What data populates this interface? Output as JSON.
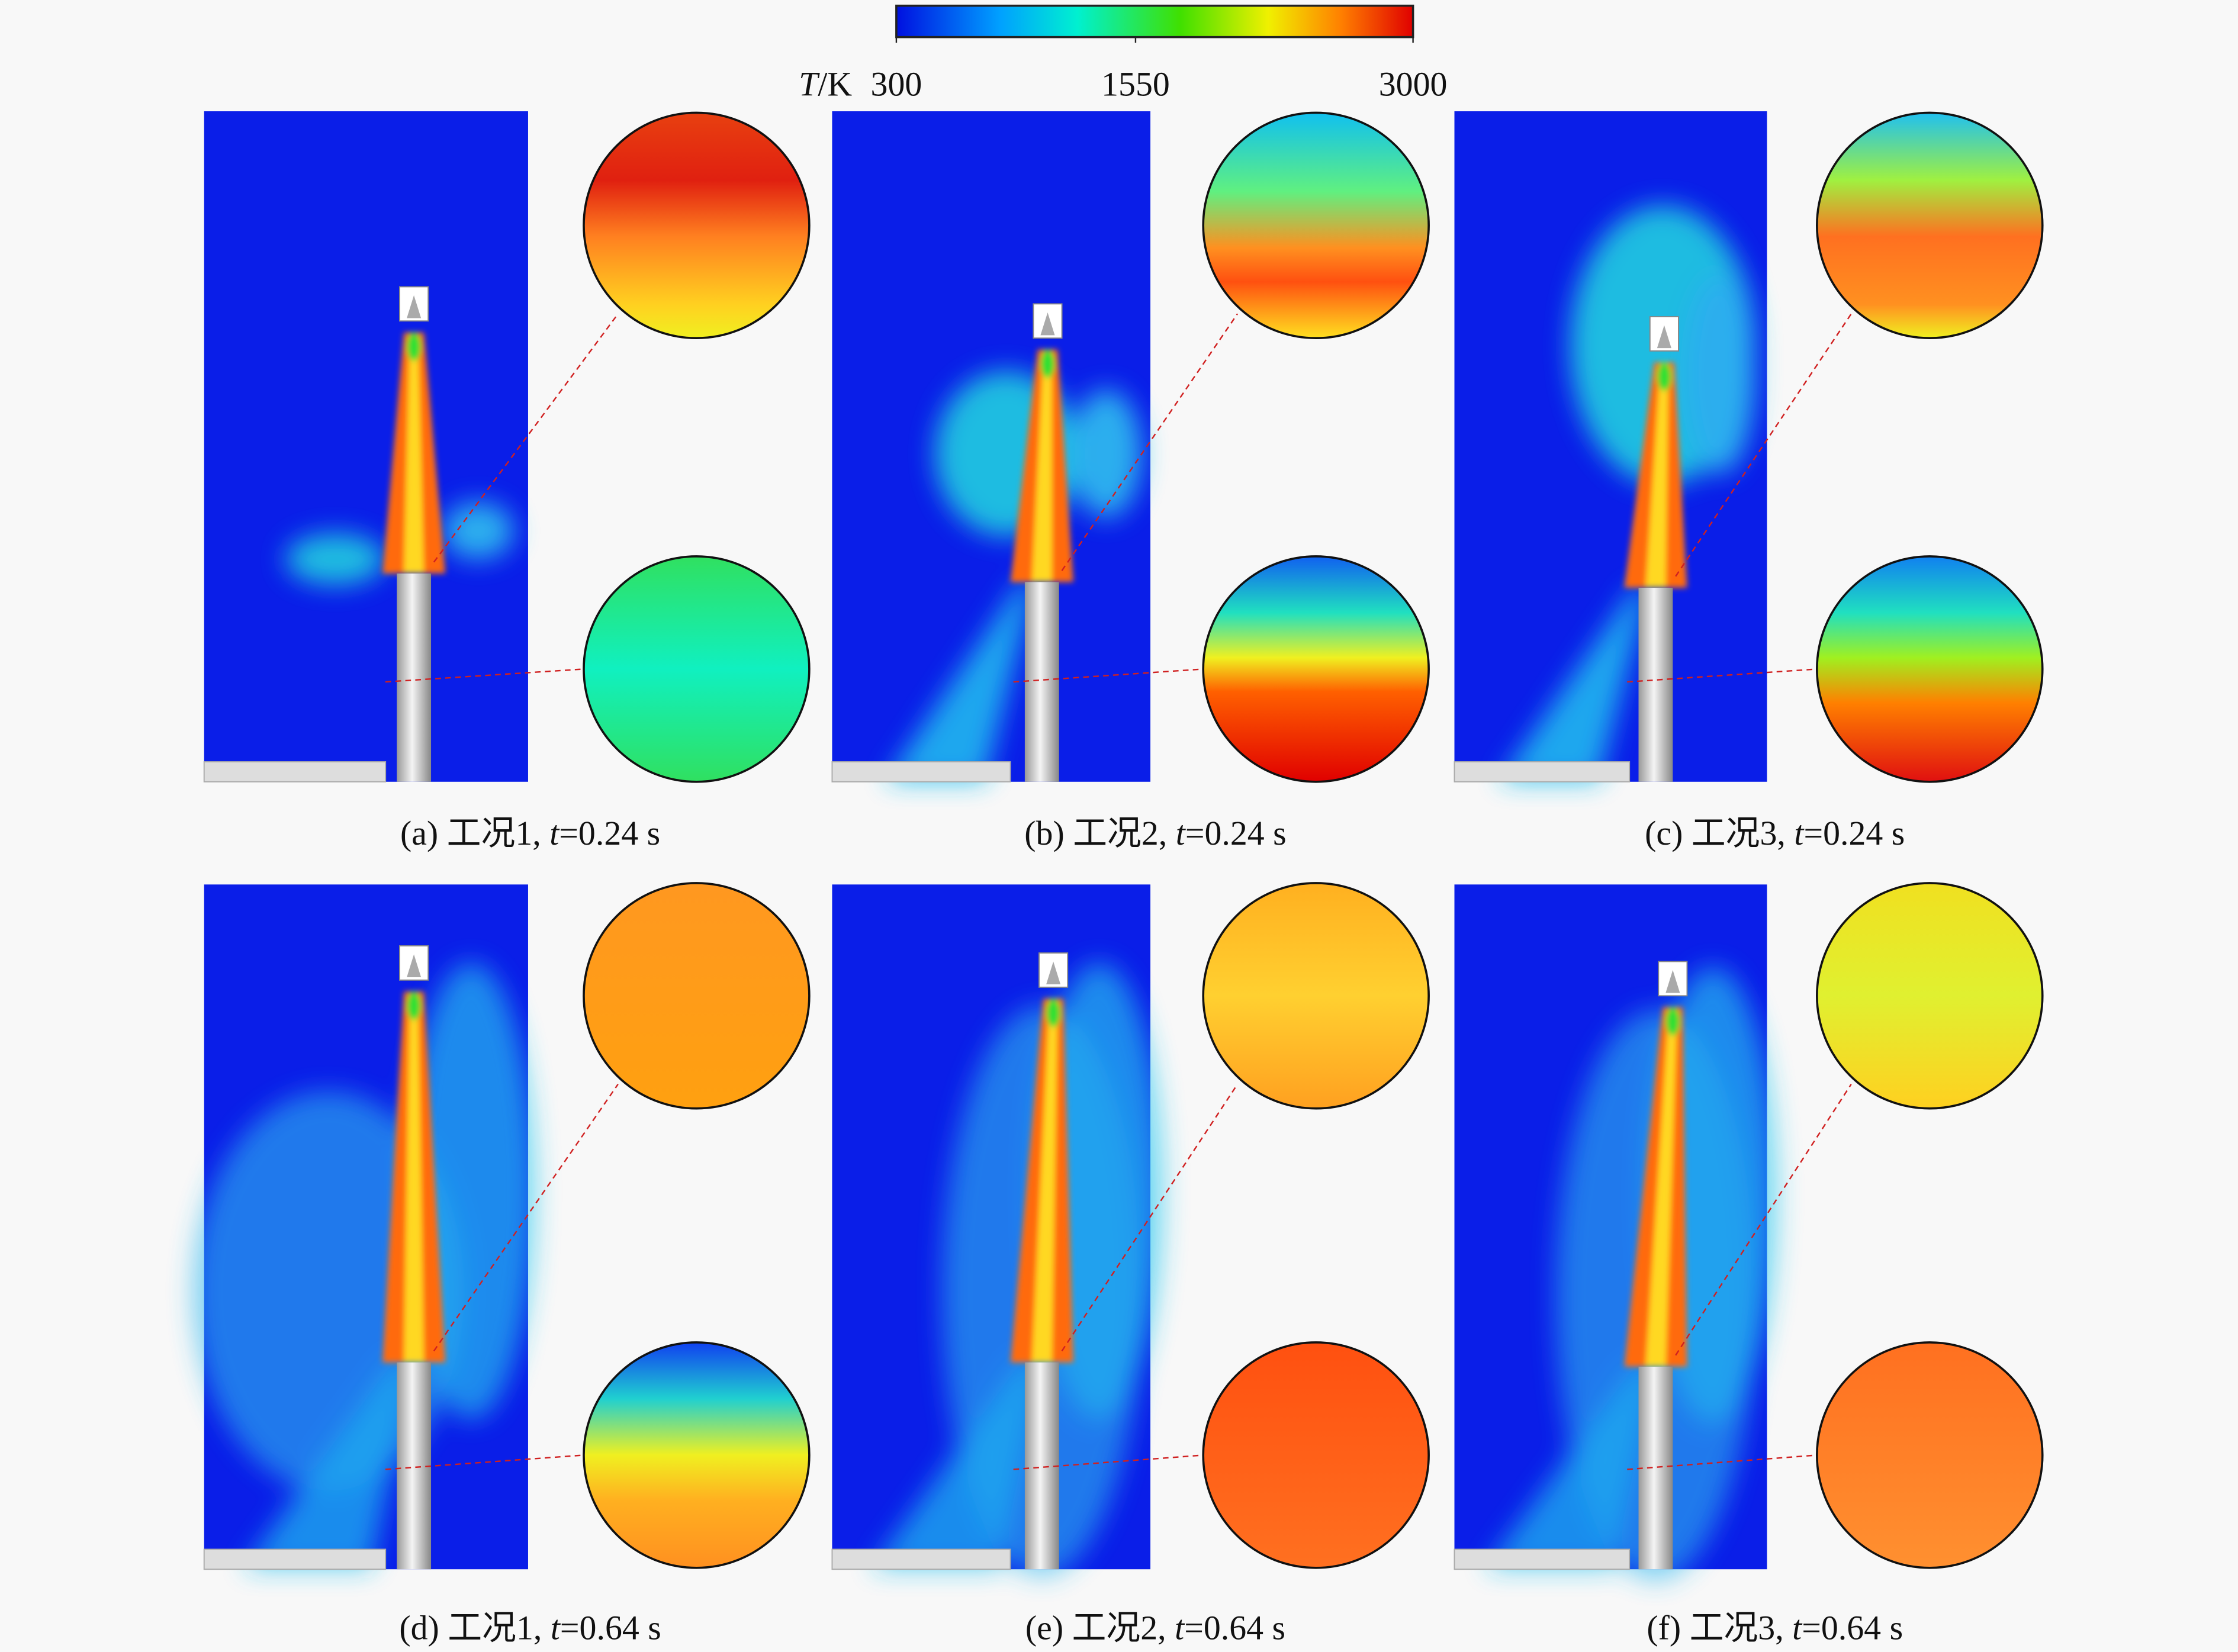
{
  "colorbar": {
    "symbol": "T",
    "unit": "/K",
    "lim": [
      300,
      3000
    ],
    "ticks": [
      300,
      1550,
      3000
    ]
  },
  "panels": [
    {
      "label": "(a) 工况1, ",
      "var": "t",
      "time": "=0.24 s"
    },
    {
      "label": "(b) 工况2, ",
      "var": "t",
      "time": "=0.24 s"
    },
    {
      "label": "(c) 工况3, ",
      "var": "t",
      "time": "=0.24 s"
    },
    {
      "label": "(d) 工况1, ",
      "var": "t",
      "time": "=0.64 s"
    },
    {
      "label": "(e) 工况2, ",
      "var": "t",
      "time": "=0.64 s"
    },
    {
      "label": "(f) 工况3, ",
      "var": "t",
      "time": "=0.64 s"
    }
  ]
}
